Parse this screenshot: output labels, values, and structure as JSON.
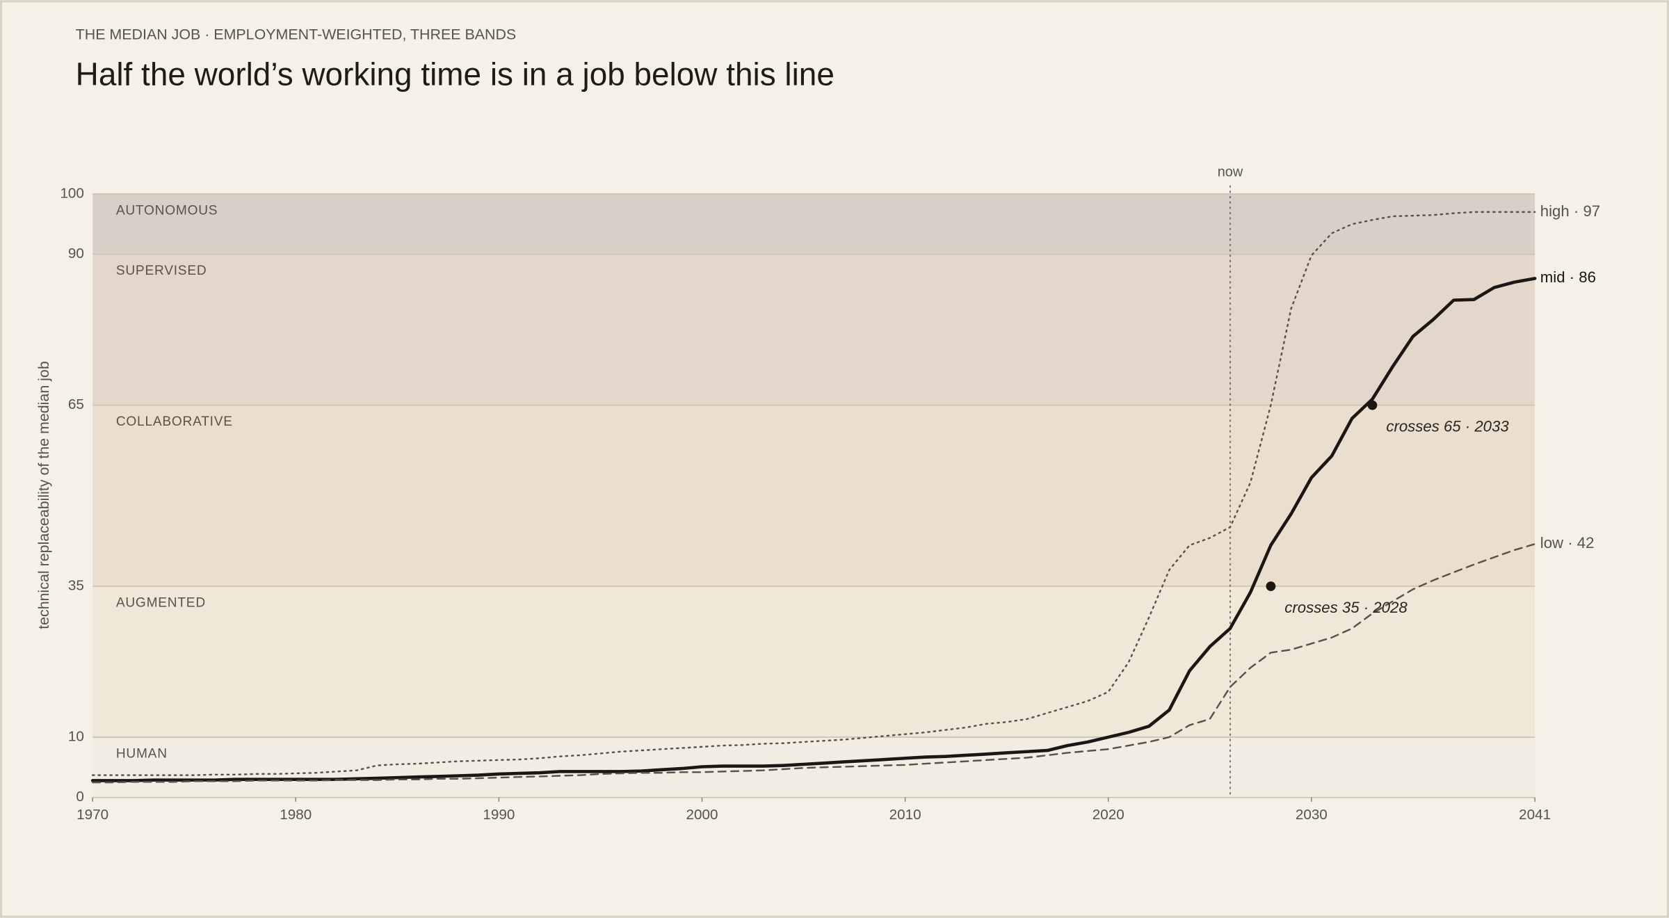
{
  "chart_data": {
    "type": "line",
    "kicker": "THE MEDIAN JOB · EMPLOYMENT-WEIGHTED, THREE BANDS",
    "title": "Half the world’s working time is in a job below this line",
    "y_label": "technical replaceability of the median job",
    "x": [
      1970,
      1971,
      1972,
      1973,
      1974,
      1975,
      1976,
      1977,
      1978,
      1979,
      1980,
      1981,
      1982,
      1983,
      1984,
      1985,
      1986,
      1987,
      1988,
      1989,
      1990,
      1991,
      1992,
      1993,
      1994,
      1995,
      1996,
      1997,
      1998,
      1999,
      2000,
      2001,
      2002,
      2003,
      2004,
      2005,
      2006,
      2007,
      2008,
      2009,
      2010,
      2011,
      2012,
      2013,
      2014,
      2015,
      2016,
      2017,
      2018,
      2019,
      2020,
      2021,
      2022,
      2023,
      2024,
      2025,
      2026,
      2027,
      2028,
      2029,
      2030,
      2031,
      2032,
      2033,
      2034,
      2035,
      2036,
      2037,
      2038,
      2039,
      2040,
      2041
    ],
    "series": [
      {
        "name": "high",
        "end_label": "high · 97",
        "color": "#5a524a",
        "dash": "dotted",
        "values": [
          3.7,
          3.7,
          3.7,
          3.7,
          3.7,
          3.7,
          3.8,
          3.8,
          3.9,
          3.9,
          4.0,
          4.1,
          4.3,
          4.5,
          5.3,
          5.5,
          5.6,
          5.8,
          6.0,
          6.1,
          6.2,
          6.3,
          6.5,
          6.8,
          7.0,
          7.3,
          7.6,
          7.8,
          8.0,
          8.2,
          8.4,
          8.6,
          8.7,
          8.9,
          9.0,
          9.2,
          9.4,
          9.6,
          9.9,
          10.2,
          10.5,
          10.8,
          11.2,
          11.6,
          12.2,
          12.5,
          13.0,
          14.0,
          15.0,
          16.0,
          17.5,
          22.4,
          29.8,
          37.7,
          41.8,
          43.0,
          44.8,
          52.2,
          65.0,
          81.0,
          89.8,
          93.5,
          95.0,
          95.7,
          96.3,
          96.4,
          96.5,
          96.8,
          97.0,
          97.0,
          97.0,
          97.0
        ]
      },
      {
        "name": "mid",
        "end_label": "mid · 86",
        "color": "#1a1714",
        "dash": "solid",
        "values": [
          2.8,
          2.8,
          2.8,
          2.9,
          2.9,
          2.9,
          2.9,
          3.0,
          3.0,
          3.0,
          3.0,
          3.0,
          3.0,
          3.1,
          3.2,
          3.3,
          3.4,
          3.5,
          3.6,
          3.7,
          3.9,
          4.0,
          4.1,
          4.3,
          4.3,
          4.3,
          4.3,
          4.4,
          4.6,
          4.8,
          5.1,
          5.2,
          5.2,
          5.2,
          5.3,
          5.5,
          5.7,
          5.9,
          6.1,
          6.3,
          6.5,
          6.7,
          6.8,
          7.0,
          7.2,
          7.4,
          7.6,
          7.8,
          8.6,
          9.2,
          10.0,
          10.8,
          11.8,
          14.5,
          21.0,
          25.0,
          28.0,
          34.0,
          41.8,
          47.0,
          53.0,
          56.6,
          62.8,
          66.0,
          71.4,
          76.4,
          79.2,
          82.4,
          82.5,
          84.5,
          85.4,
          86.0
        ]
      },
      {
        "name": "low",
        "end_label": "low · 42",
        "color": "#5a524a",
        "dash": "dashed",
        "values": [
          2.5,
          2.5,
          2.6,
          2.6,
          2.6,
          2.7,
          2.7,
          2.7,
          2.8,
          2.8,
          2.8,
          2.8,
          2.9,
          2.9,
          2.9,
          3.0,
          3.0,
          3.1,
          3.1,
          3.2,
          3.3,
          3.4,
          3.5,
          3.6,
          3.7,
          3.9,
          4.0,
          4.1,
          4.1,
          4.2,
          4.2,
          4.3,
          4.4,
          4.5,
          4.7,
          4.9,
          5.0,
          5.1,
          5.2,
          5.3,
          5.4,
          5.6,
          5.8,
          6.0,
          6.2,
          6.4,
          6.6,
          7.0,
          7.4,
          7.7,
          8.0,
          8.6,
          9.2,
          10.0,
          12.0,
          13.0,
          18.3,
          21.5,
          24.0,
          24.5,
          25.5,
          26.5,
          28.0,
          30.5,
          32.5,
          34.5,
          36.0,
          37.3,
          38.6,
          39.8,
          41.0,
          42.0
        ]
      }
    ],
    "bands": [
      {
        "label": "HUMAN",
        "from": 0,
        "to": 10,
        "color": "#f2ede2"
      },
      {
        "label": "AUGMENTED",
        "from": 10,
        "to": 35,
        "color": "#efe7d8"
      },
      {
        "label": "COLLABORATIVE",
        "from": 35,
        "to": 65,
        "color": "#eadfcf"
      },
      {
        "label": "SUPERVISED",
        "from": 65,
        "to": 90,
        "color": "#e3d7cb"
      },
      {
        "label": "AUTONOMOUS",
        "from": 90,
        "to": 100,
        "color": "#d8d0c6"
      }
    ],
    "now": {
      "label": "now",
      "x": 2026
    },
    "annotations": [
      {
        "text": "crosses 35 · 2028",
        "x": 2028,
        "y": 35
      },
      {
        "text": "crosses 65 · 2033",
        "x": 2033,
        "y": 65
      }
    ],
    "xlim": [
      1970,
      2041
    ],
    "xticks": [
      1970,
      1980,
      1990,
      2000,
      2010,
      2020,
      2030,
      2041
    ],
    "ylim": [
      0,
      100
    ],
    "yticks": [
      0,
      10,
      35,
      65,
      90,
      100
    ],
    "grid": true
  }
}
